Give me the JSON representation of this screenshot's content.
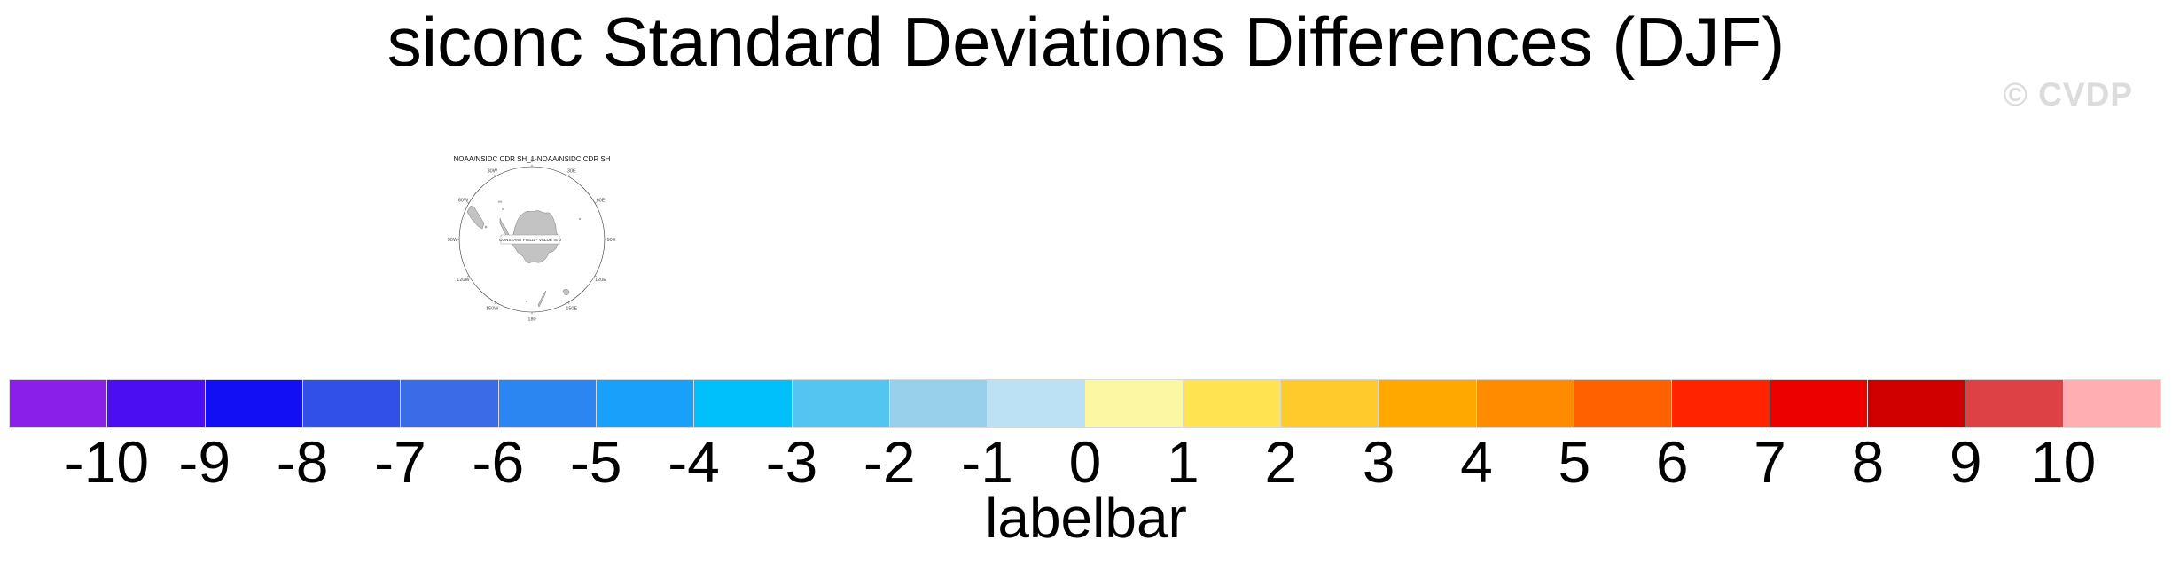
{
  "page": {
    "title": "siconc Standard Deviations Differences (DJF)",
    "watermark": "© CVDP"
  },
  "map": {
    "title": "NOAA/NSIDC CDR SH_1-NOAA/NSIDC CDR SH",
    "center_note": "CONSTANT FIELD - VALUE IS 0",
    "lon_labels": [
      {
        "label": "0",
        "angle": 0
      },
      {
        "label": "30E",
        "angle": 30
      },
      {
        "label": "60E",
        "angle": 60
      },
      {
        "label": "90E",
        "angle": 90
      },
      {
        "label": "120E",
        "angle": 120
      },
      {
        "label": "150E",
        "angle": 150
      },
      {
        "label": "180",
        "angle": 180
      },
      {
        "label": "150W",
        "angle": 210
      },
      {
        "label": "120W",
        "angle": 240
      },
      {
        "label": "90W",
        "angle": 270
      },
      {
        "label": "60W",
        "angle": 300
      },
      {
        "label": "30W",
        "angle": 330
      }
    ]
  },
  "chart_data": {
    "type": "map",
    "title": "siconc Standard Deviations Differences (DJF)",
    "panel_title": "NOAA/NSIDC CDR SH_1-NOAA/NSIDC CDR SH",
    "projection": "south-polar-stereographic",
    "annotation": "CONSTANT FIELD - VALUE IS 0",
    "colorbar": {
      "title": "labelbar",
      "tick_labels": [
        "-10",
        "-9",
        "-8",
        "-7",
        "-6",
        "-5",
        "-4",
        "-3",
        "-2",
        "-1",
        "0",
        "1",
        "2",
        "3",
        "4",
        "5",
        "6",
        "7",
        "8",
        "9",
        "10"
      ],
      "colors": [
        "#8a1fe9",
        "#4a0ef1",
        "#130ff4",
        "#3050e8",
        "#3c6be8",
        "#2c86f2",
        "#19a0fa",
        "#00c0fc",
        "#54c4f1",
        "#98cfea",
        "#bce1f4",
        "#fbf7a3",
        "#ffe350",
        "#ffca2c",
        "#ffa900",
        "#ff8b00",
        "#ff6000",
        "#ff2400",
        "#ec0000",
        "#ce0000",
        "#dd4145",
        "#ffafb2"
      ]
    }
  }
}
